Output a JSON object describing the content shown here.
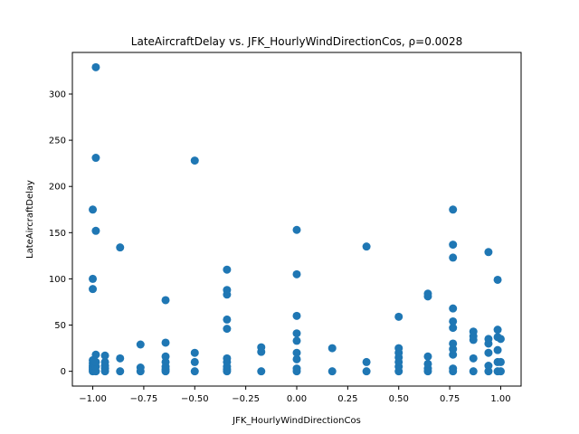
{
  "chart_data": {
    "type": "scatter",
    "title": "LateAircraftDelay vs. JFK_HourlyWindDirectionCos, ρ=0.0028",
    "xlabel": "JFK_HourlyWindDirectionCos",
    "ylabel": "LateAircraftDelay",
    "xlim": [
      -1.1,
      1.1
    ],
    "ylim": [
      -16,
      345
    ],
    "xticks": [
      -1.0,
      -0.75,
      -0.5,
      -0.25,
      0.0,
      0.25,
      0.5,
      0.75,
      1.0
    ],
    "xtick_labels": [
      "−1.00",
      "−0.75",
      "−0.50",
      "−0.25",
      "0.00",
      "0.25",
      "0.50",
      "0.75",
      "1.00"
    ],
    "yticks": [
      0,
      50,
      100,
      150,
      200,
      250,
      300
    ],
    "ytick_labels": [
      "0",
      "50",
      "100",
      "150",
      "200",
      "250",
      "300"
    ],
    "grid": false,
    "marker_color": "#1f77b4",
    "points": [
      [
        -1.0,
        0
      ],
      [
        -1.0,
        2
      ],
      [
        -1.0,
        4
      ],
      [
        -1.0,
        6
      ],
      [
        -1.0,
        9
      ],
      [
        -1.0,
        12
      ],
      [
        -1.0,
        89
      ],
      [
        -1.0,
        100
      ],
      [
        -1.0,
        175
      ],
      [
        -0.985,
        0
      ],
      [
        -0.985,
        5
      ],
      [
        -0.985,
        10
      ],
      [
        -0.985,
        18
      ],
      [
        -0.985,
        152
      ],
      [
        -0.985,
        231
      ],
      [
        -0.985,
        329
      ],
      [
        -0.94,
        0
      ],
      [
        -0.94,
        3
      ],
      [
        -0.94,
        6
      ],
      [
        -0.94,
        10
      ],
      [
        -0.94,
        17
      ],
      [
        -0.866,
        0
      ],
      [
        -0.866,
        14
      ],
      [
        -0.866,
        134
      ],
      [
        -0.766,
        0
      ],
      [
        -0.766,
        4
      ],
      [
        -0.766,
        29
      ],
      [
        -0.643,
        0
      ],
      [
        -0.643,
        2
      ],
      [
        -0.643,
        5
      ],
      [
        -0.643,
        10
      ],
      [
        -0.643,
        16
      ],
      [
        -0.643,
        31
      ],
      [
        -0.643,
        77
      ],
      [
        -0.5,
        0
      ],
      [
        -0.5,
        10
      ],
      [
        -0.5,
        20
      ],
      [
        -0.5,
        228
      ],
      [
        -0.342,
        0
      ],
      [
        -0.342,
        2
      ],
      [
        -0.342,
        5
      ],
      [
        -0.342,
        10
      ],
      [
        -0.342,
        14
      ],
      [
        -0.342,
        46
      ],
      [
        -0.342,
        56
      ],
      [
        -0.342,
        83
      ],
      [
        -0.342,
        88
      ],
      [
        -0.342,
        110
      ],
      [
        -0.174,
        0
      ],
      [
        -0.174,
        21
      ],
      [
        -0.174,
        26
      ],
      [
        0.0,
        0
      ],
      [
        0.0,
        3
      ],
      [
        0.0,
        13
      ],
      [
        0.0,
        20
      ],
      [
        0.0,
        33
      ],
      [
        0.0,
        41
      ],
      [
        0.0,
        60
      ],
      [
        0.0,
        105
      ],
      [
        0.0,
        153
      ],
      [
        0.174,
        0
      ],
      [
        0.174,
        25
      ],
      [
        0.342,
        0
      ],
      [
        0.342,
        10
      ],
      [
        0.342,
        135
      ],
      [
        0.5,
        0
      ],
      [
        0.5,
        5
      ],
      [
        0.5,
        10
      ],
      [
        0.5,
        15
      ],
      [
        0.5,
        20
      ],
      [
        0.5,
        25
      ],
      [
        0.5,
        59
      ],
      [
        0.643,
        0
      ],
      [
        0.643,
        3
      ],
      [
        0.643,
        8
      ],
      [
        0.643,
        16
      ],
      [
        0.643,
        81
      ],
      [
        0.643,
        84
      ],
      [
        0.766,
        0
      ],
      [
        0.766,
        3
      ],
      [
        0.766,
        18
      ],
      [
        0.766,
        24
      ],
      [
        0.766,
        30
      ],
      [
        0.766,
        47
      ],
      [
        0.766,
        54
      ],
      [
        0.766,
        68
      ],
      [
        0.766,
        123
      ],
      [
        0.766,
        137
      ],
      [
        0.766,
        175
      ],
      [
        0.866,
        0
      ],
      [
        0.866,
        14
      ],
      [
        0.866,
        34
      ],
      [
        0.866,
        38
      ],
      [
        0.866,
        43
      ],
      [
        0.94,
        0
      ],
      [
        0.94,
        6
      ],
      [
        0.94,
        20
      ],
      [
        0.94,
        30
      ],
      [
        0.94,
        35
      ],
      [
        0.94,
        129
      ],
      [
        0.985,
        0
      ],
      [
        0.985,
        10
      ],
      [
        0.985,
        23
      ],
      [
        0.985,
        37
      ],
      [
        0.985,
        45
      ],
      [
        0.985,
        99
      ],
      [
        1.0,
        0
      ],
      [
        1.0,
        10
      ],
      [
        1.0,
        35
      ]
    ]
  }
}
